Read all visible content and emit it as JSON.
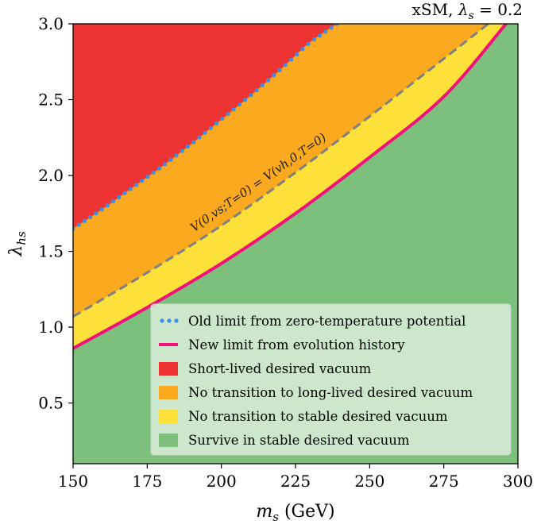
{
  "chart_data": {
    "type": "area",
    "title": "xSM, λs = 0.2",
    "xlabel": "ms (GeV)",
    "ylabel": "λhs",
    "xlim": [
      150,
      300
    ],
    "ylim": [
      0.1,
      3.0
    ],
    "xticks": [
      150,
      175,
      200,
      225,
      250,
      275,
      300
    ],
    "xtick_labels": [
      "150",
      "175",
      "200",
      "225",
      "250",
      "275",
      "300"
    ],
    "yticks": [
      0.5,
      1.0,
      1.5,
      2.0,
      2.5,
      3.0
    ],
    "ytick_labels": [
      "0.5",
      "1.0",
      "1.5",
      "2.0",
      "2.5",
      "3.0"
    ],
    "grid": false,
    "legend_position": "bottom-right",
    "annotation": "V(0,vs;T=0) = V(vh,0,T=0)",
    "colors": {
      "red": "#ee3333",
      "orange": "#fba91f",
      "yellow": "#fde03a",
      "green": "#7dbf7d",
      "blue_dotted": "#3c8de6",
      "pink": "#f0127a",
      "gray_dashed": "#7f7f7f"
    },
    "series": [
      {
        "name": "Old limit from zero-temperature potential",
        "style": "dotted",
        "x": [
          150,
          160,
          170,
          180,
          190,
          200,
          210,
          220,
          230,
          239
        ],
        "y": [
          1.65,
          1.78,
          1.92,
          2.06,
          2.21,
          2.37,
          2.53,
          2.7,
          2.88,
          3.0
        ]
      },
      {
        "name": "V(0,vs;T=0) = V(vh,0,T=0)",
        "style": "dashed",
        "x": [
          150,
          175,
          200,
          225,
          250,
          275,
          290
        ],
        "y": [
          1.07,
          1.36,
          1.67,
          2.02,
          2.39,
          2.77,
          3.0
        ]
      },
      {
        "name": "New limit from evolution history",
        "style": "solid",
        "x": [
          150,
          175,
          200,
          225,
          250,
          275,
          296
        ],
        "y": [
          0.86,
          1.13,
          1.42,
          1.75,
          2.12,
          2.52,
          3.0
        ]
      }
    ],
    "regions": [
      "Short-lived desired vacuum",
      "No transition to long-lived desired vacuum",
      "No transition to stable desired vacuum",
      "Survive in stable desired vacuum"
    ]
  },
  "legend": {
    "items": [
      {
        "label": "Old limit from zero-temperature potential",
        "key": "blue_dotted"
      },
      {
        "label": "New limit from evolution history",
        "key": "pink"
      },
      {
        "label": "Short-lived desired vacuum",
        "key": "red"
      },
      {
        "label": "No transition to long-lived desired vacuum",
        "key": "orange"
      },
      {
        "label": "No transition to stable desired vacuum",
        "key": "yellow"
      },
      {
        "label": "Survive in stable desired vacuum",
        "key": "green"
      }
    ]
  }
}
